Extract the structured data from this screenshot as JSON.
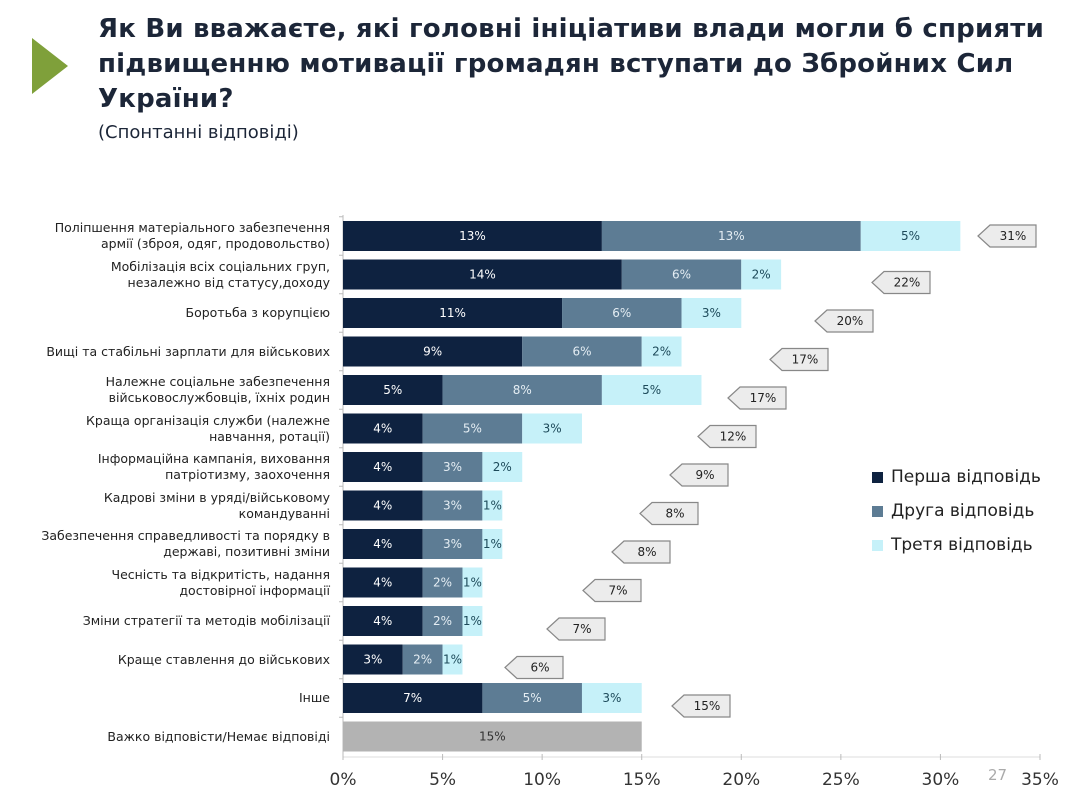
{
  "header": {
    "title": "Як Ви вважаєте, які головні ініціативи влади могли б сприяти підвищенню мотивації громадян вступати до Збройних Сил України?",
    "subtitle": "(Спонтанні відповіді)",
    "accent_color": "#7fa03a"
  },
  "page_number": "27",
  "chart_data": {
    "type": "bar",
    "orientation": "horizontal",
    "stacked": true,
    "categories": [
      "Поліпшення матеріального забезпечення\nармії (зброя, одяг, продовольство)",
      "Мобілізація всіх соціальних груп,\nнезалежно від статусу,доходу",
      "Боротьба з корупцією",
      "Вищі та стабільні зарплати для військових",
      "Належне соціальне забезпечення\nвійськовослужбовців, їхніх родин",
      "Краща організація служби (належне\nнавчання, ротації)",
      "Інформаційна кампанія, виховання\nпатріотизму, заохочення",
      "Кадрові зміни в уряді/військовому\nкомандуванні",
      "Забезпечення справедливості та порядку в\nдержаві, позитивні зміни",
      "Чесність та відкритість, надання\nдостовірної інформації",
      "Зміни стратегії та методів мобілізації",
      "Краще ставлення до військових",
      "Інше",
      "Важко відповісти/Немає відповіді"
    ],
    "series": [
      {
        "name": "Перша відповідь",
        "color": "#0e2240",
        "values": [
          13,
          14,
          11,
          9,
          5,
          4,
          4,
          4,
          4,
          4,
          4,
          3,
          7,
          null
        ],
        "labels": [
          "13%",
          "14%",
          "11%",
          "9%",
          "5%",
          "4%",
          "4%",
          "4%",
          "4%",
          "4%",
          "4%",
          "3%",
          "7%",
          null
        ]
      },
      {
        "name": "Друга відповідь",
        "color": "#5d7c94",
        "values": [
          13,
          6,
          6,
          6,
          8,
          5,
          3,
          3,
          3,
          2,
          2,
          2,
          5,
          null
        ],
        "labels": [
          "13%",
          "6%",
          "6%",
          "6%",
          "8%",
          "5%",
          "3%",
          "3%",
          "3%",
          "2%",
          "2%",
          "2%",
          "5%",
          null
        ]
      },
      {
        "name": "Третя відповідь",
        "color": "#c6f1f9",
        "values": [
          5,
          2,
          3,
          2,
          5,
          3,
          2,
          1,
          1,
          1,
          1,
          1,
          3,
          null
        ],
        "labels": [
          "5%",
          "2%",
          "3%",
          "2%",
          "5%",
          "3%",
          "2%",
          "1%",
          "1%",
          "1%",
          "1%",
          "1%",
          "3%",
          null
        ]
      }
    ],
    "no_answer": {
      "value": 15,
      "label": "15%",
      "color": "#b3b3b3"
    },
    "totals": [
      "31%",
      "22%",
      "20%",
      "17%",
      "17%",
      "12%",
      "9%",
      "8%",
      "8%",
      "7%",
      "7%",
      "6%",
      "15%",
      null
    ],
    "x_ticks": [
      "0%",
      "5%",
      "10%",
      "15%",
      "20%",
      "25%",
      "30%",
      "35%"
    ],
    "xlim": [
      0,
      35
    ],
    "legend_position": "right"
  }
}
